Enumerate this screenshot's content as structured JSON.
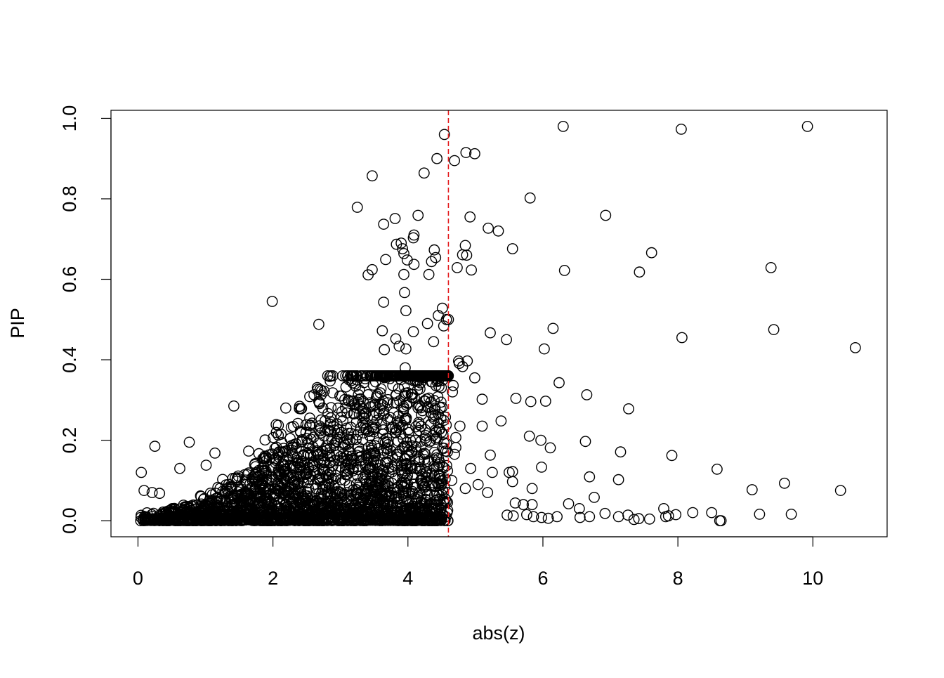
{
  "chart_data": {
    "type": "scatter",
    "title": "",
    "xlabel": "abs(z)",
    "ylabel": "PIP",
    "xlim": [
      -0.4,
      11.1
    ],
    "ylim": [
      -0.04,
      1.02
    ],
    "x_ticks": [
      0,
      2,
      4,
      6,
      8,
      10
    ],
    "y_ticks": [
      0.0,
      0.2,
      0.4,
      0.6,
      0.8,
      1.0
    ],
    "x_tick_labels": [
      "0",
      "2",
      "4",
      "6",
      "8",
      "10"
    ],
    "y_tick_labels": [
      "0.0",
      "0.2",
      "0.4",
      "0.6",
      "0.8",
      "1.0"
    ],
    "marker": "open-circle",
    "grid": false,
    "legend": "none",
    "reference_lines": [
      {
        "orientation": "vertical",
        "x": 4.6,
        "style": "dashed",
        "color": "#e31a1c"
      }
    ],
    "colors": {
      "points": "#000000",
      "reference_line": "#e31a1c"
    },
    "series": [
      {
        "points": [
          [
            9.92,
            0.98
          ],
          [
            6.3,
            0.98
          ],
          [
            8.05,
            0.973
          ],
          [
            4.54,
            0.96
          ],
          [
            4.86,
            0.915
          ],
          [
            4.99,
            0.912
          ],
          [
            4.43,
            0.9
          ],
          [
            4.69,
            0.895
          ],
          [
            4.24,
            0.864
          ],
          [
            3.47,
            0.857
          ],
          [
            5.81,
            0.802
          ],
          [
            3.25,
            0.779
          ],
          [
            4.15,
            0.759
          ],
          [
            3.81,
            0.751
          ],
          [
            4.92,
            0.755
          ],
          [
            6.93,
            0.759
          ],
          [
            3.64,
            0.737
          ],
          [
            5.19,
            0.727
          ],
          [
            5.34,
            0.72
          ],
          [
            4.09,
            0.71
          ],
          [
            4.08,
            0.703
          ],
          [
            3.9,
            0.69
          ],
          [
            3.83,
            0.687
          ],
          [
            4.85,
            0.684
          ],
          [
            3.92,
            0.676
          ],
          [
            4.39,
            0.673
          ],
          [
            5.55,
            0.676
          ],
          [
            7.61,
            0.666
          ],
          [
            3.94,
            0.664
          ],
          [
            4.81,
            0.661
          ],
          [
            4.87,
            0.66
          ],
          [
            4.41,
            0.654
          ],
          [
            3.67,
            0.649
          ],
          [
            3.99,
            0.648
          ],
          [
            4.35,
            0.644
          ],
          [
            4.09,
            0.637
          ],
          [
            4.73,
            0.629
          ],
          [
            9.38,
            0.629
          ],
          [
            3.47,
            0.624
          ],
          [
            4.94,
            0.623
          ],
          [
            6.32,
            0.622
          ],
          [
            7.43,
            0.618
          ],
          [
            3.41,
            0.611
          ],
          [
            3.94,
            0.612
          ],
          [
            4.31,
            0.612
          ],
          [
            3.95,
            0.567
          ],
          [
            1.99,
            0.545
          ],
          [
            3.64,
            0.543
          ],
          [
            4.51,
            0.528
          ],
          [
            3.97,
            0.522
          ],
          [
            4.45,
            0.51
          ],
          [
            4.6,
            0.5
          ],
          [
            4.57,
            0.5
          ],
          [
            2.68,
            0.488
          ],
          [
            4.29,
            0.49
          ],
          [
            4.53,
            0.484
          ],
          [
            6.15,
            0.478
          ],
          [
            9.42,
            0.475
          ],
          [
            3.62,
            0.472
          ],
          [
            4.08,
            0.47
          ],
          [
            5.22,
            0.467
          ],
          [
            5.46,
            0.45
          ],
          [
            8.06,
            0.455
          ],
          [
            3.82,
            0.452
          ],
          [
            4.38,
            0.445
          ],
          [
            3.87,
            0.434
          ],
          [
            3.65,
            0.425
          ],
          [
            3.97,
            0.427
          ],
          [
            6.02,
            0.427
          ],
          [
            10.63,
            0.43
          ],
          [
            4.75,
            0.397
          ],
          [
            4.88,
            0.397
          ],
          [
            4.76,
            0.391
          ],
          [
            4.81,
            0.383
          ],
          [
            3.96,
            0.38
          ],
          [
            4.09,
            0.36
          ],
          [
            4.46,
            0.359
          ],
          [
            4.11,
            0.348
          ],
          [
            3.16,
            0.348
          ],
          [
            3.52,
            0.345
          ],
          [
            4.99,
            0.355
          ],
          [
            6.24,
            0.343
          ],
          [
            4.16,
            0.337
          ],
          [
            3.28,
            0.325
          ],
          [
            4.67,
            0.336
          ],
          [
            4.66,
            0.32
          ],
          [
            6.65,
            0.313
          ],
          [
            5.1,
            0.302
          ],
          [
            5.6,
            0.304
          ],
          [
            5.82,
            0.296
          ],
          [
            6.04,
            0.297
          ],
          [
            4.34,
            0.295
          ],
          [
            2.69,
            0.291
          ],
          [
            4.48,
            0.281
          ],
          [
            7.27,
            0.278
          ],
          [
            1.42,
            0.285
          ],
          [
            2.19,
            0.28
          ],
          [
            5.38,
            0.248
          ],
          [
            4.77,
            0.235
          ],
          [
            5.1,
            0.235
          ],
          [
            4.71,
            0.207
          ],
          [
            5.8,
            0.21
          ],
          [
            5.97,
            0.2
          ],
          [
            6.63,
            0.197
          ],
          [
            4.71,
            0.182
          ],
          [
            6.11,
            0.181
          ],
          [
            7.15,
            0.171
          ],
          [
            4.69,
            0.165
          ],
          [
            7.91,
            0.162
          ],
          [
            4.56,
            0.173
          ],
          [
            5.22,
            0.163
          ],
          [
            5.98,
            0.133
          ],
          [
            8.58,
            0.128
          ],
          [
            4.93,
            0.13
          ],
          [
            5.25,
            0.12
          ],
          [
            5.5,
            0.12
          ],
          [
            5.55,
            0.122
          ],
          [
            6.69,
            0.109
          ],
          [
            7.12,
            0.102
          ],
          [
            5.55,
            0.097
          ],
          [
            9.58,
            0.093
          ],
          [
            4.65,
            0.1
          ],
          [
            5.04,
            0.09
          ],
          [
            5.84,
            0.08
          ],
          [
            9.1,
            0.077
          ],
          [
            10.41,
            0.075
          ],
          [
            6.76,
            0.058
          ],
          [
            0.25,
            0.185
          ],
          [
            0.76,
            0.195
          ],
          [
            1.14,
            0.168
          ],
          [
            1.64,
            0.173
          ],
          [
            2.12,
            0.215
          ],
          [
            0.05,
            0.12
          ],
          [
            0.62,
            0.13
          ],
          [
            1.01,
            0.138
          ],
          [
            0.09,
            0.075
          ],
          [
            0.21,
            0.07
          ],
          [
            0.32,
            0.068
          ],
          [
            4.85,
            0.08
          ],
          [
            5.18,
            0.07
          ],
          [
            6.38,
            0.042
          ],
          [
            6.54,
            0.03
          ],
          [
            7.79,
            0.03
          ],
          [
            7.82,
            0.01
          ],
          [
            8.22,
            0.02
          ],
          [
            8.5,
            0.02
          ],
          [
            9.21,
            0.016
          ],
          [
            9.68,
            0.016
          ],
          [
            8.62,
            0.0
          ],
          [
            8.64,
            0.0
          ],
          [
            7.35,
            0.003
          ],
          [
            7.42,
            0.005
          ],
          [
            7.58,
            0.004
          ],
          [
            6.21,
            0.01
          ],
          [
            6.55,
            0.008
          ],
          [
            6.69,
            0.01
          ],
          [
            6.92,
            0.018
          ],
          [
            7.12,
            0.01
          ],
          [
            7.26,
            0.014
          ],
          [
            7.86,
            0.012
          ],
          [
            7.97,
            0.015
          ],
          [
            5.76,
            0.015
          ],
          [
            5.86,
            0.01
          ],
          [
            5.98,
            0.008
          ],
          [
            6.08,
            0.006
          ],
          [
            5.59,
            0.044
          ],
          [
            5.71,
            0.04
          ],
          [
            5.84,
            0.04
          ],
          [
            5.47,
            0.014
          ],
          [
            5.56,
            0.012
          ]
        ]
      }
    ]
  }
}
